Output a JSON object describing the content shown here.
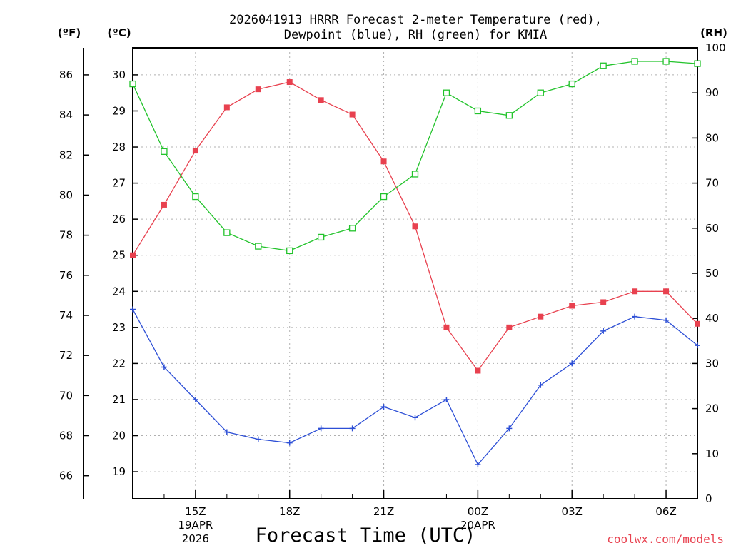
{
  "chart_data": {
    "type": "line",
    "title_line1": "2026041913 HRRR Forecast 2-meter Temperature (red),",
    "title_line2": "Dewpoint (blue), RH (green) for KMIA",
    "xlabel": "Forecast Time (UTC)",
    "credit": "coolwx.com/models",
    "unit_f": "(ºF)",
    "unit_c": "(ºC)",
    "unit_rh": "(RH)",
    "x_hours": [
      13,
      14,
      15,
      16,
      17,
      18,
      19,
      20,
      21,
      22,
      23,
      24,
      25,
      26,
      27,
      28,
      29,
      30,
      31
    ],
    "x_range": [
      13,
      31
    ],
    "x_ticks": [
      {
        "hour": 15,
        "lines": [
          "15Z",
          "19APR",
          "2026"
        ]
      },
      {
        "hour": 18,
        "lines": [
          "18Z"
        ]
      },
      {
        "hour": 21,
        "lines": [
          "21Z"
        ]
      },
      {
        "hour": 24,
        "lines": [
          "00Z",
          "20APR"
        ]
      },
      {
        "hour": 27,
        "lines": [
          "03Z"
        ]
      },
      {
        "hour": 30,
        "lines": [
          "06Z"
        ]
      }
    ],
    "c_range": [
      18.25,
      30.75
    ],
    "c_ticks": [
      19,
      20,
      21,
      22,
      23,
      24,
      25,
      26,
      27,
      28,
      29,
      30
    ],
    "f_ticks": [
      66,
      68,
      70,
      72,
      74,
      76,
      78,
      80,
      82,
      84,
      86
    ],
    "rh_range": [
      0,
      100
    ],
    "rh_ticks": [
      0,
      10,
      20,
      30,
      40,
      50,
      60,
      70,
      80,
      90,
      100
    ],
    "series": [
      {
        "name": "2-meter Temperature",
        "unit": "C",
        "color": "#e8414f",
        "marker": "filled-square",
        "values": [
          25.0,
          26.4,
          27.9,
          29.1,
          29.6,
          29.8,
          29.3,
          28.9,
          27.6,
          25.8,
          23.0,
          21.8,
          23.0,
          23.3,
          23.6,
          23.7,
          24.0,
          24.0,
          23.1
        ]
      },
      {
        "name": "Dewpoint",
        "unit": "C",
        "color": "#2d4fd6",
        "marker": "plus",
        "values": [
          23.5,
          21.9,
          21.0,
          20.1,
          19.9,
          19.8,
          20.2,
          20.2,
          20.8,
          20.5,
          21.0,
          19.2,
          20.2,
          21.4,
          22.0,
          22.9,
          23.3,
          23.2,
          22.5
        ]
      },
      {
        "name": "RH",
        "unit": "%",
        "color": "#22c32b",
        "marker": "open-square",
        "values": [
          92,
          77,
          67,
          59,
          56,
          55,
          58,
          60,
          67,
          72,
          90,
          86,
          85,
          90,
          92,
          96,
          97,
          97,
          96.5
        ]
      }
    ]
  }
}
